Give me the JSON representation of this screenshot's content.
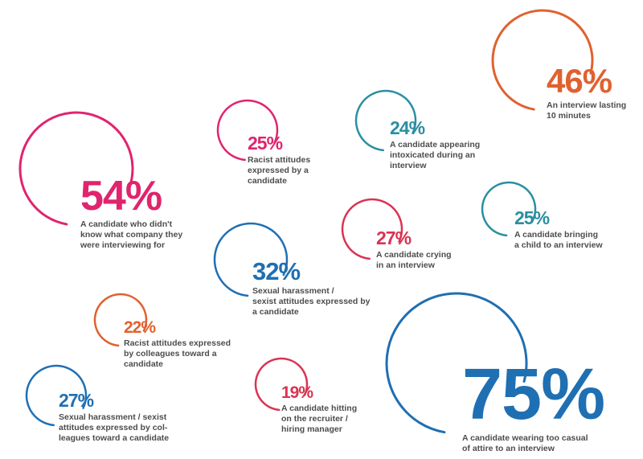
{
  "colors": {
    "magenta": "#e0246e",
    "orange": "#e0612f",
    "blue": "#1f6fb3",
    "teal": "#2a8fa1",
    "rose": "#d93352",
    "text": "#4d4d4d"
  },
  "chart_data": {
    "type": "bubble",
    "items": [
      {
        "value": 54,
        "label": "54%",
        "description": "A candidate who didn't\nknow what company they\nwere interviewing for",
        "color": "magenta"
      },
      {
        "value": 25,
        "label": "25%",
        "description": "Racist attitudes\nexpressed by a\ncandidate",
        "color": "magenta"
      },
      {
        "value": 24,
        "label": "24%",
        "description": "A candidate appearing\nintoxicated during an\ninterview",
        "color": "teal"
      },
      {
        "value": 46,
        "label": "46%",
        "description": "An interview lasting\n10 minutes",
        "color": "orange"
      },
      {
        "value": 25,
        "label": "25%",
        "description": "A candidate bringing\na child to an interview",
        "color": "teal"
      },
      {
        "value": 27,
        "label": "27%",
        "description": "A candidate crying\nin an interview",
        "color": "rose"
      },
      {
        "value": 32,
        "label": "32%",
        "description": "Sexual harassment /\nsexist attitudes expressed by\na candidate",
        "color": "blue"
      },
      {
        "value": 22,
        "label": "22%",
        "description": "Racist attitudes expressed\nby colleagues toward a\ncandidate",
        "color": "orange"
      },
      {
        "value": 27,
        "label": "27%",
        "description": "Sexual harassment / sexist\nattitudes expressed by col-\nleagues toward a candidate",
        "color": "blue"
      },
      {
        "value": 19,
        "label": "19%",
        "description": "A candidate hitting\non the recruiter /\nhiring manager",
        "color": "rose"
      },
      {
        "value": 75,
        "label": "75%",
        "description": "A candidate wearing too casual\nof attire to an interview",
        "color": "blue"
      }
    ]
  }
}
